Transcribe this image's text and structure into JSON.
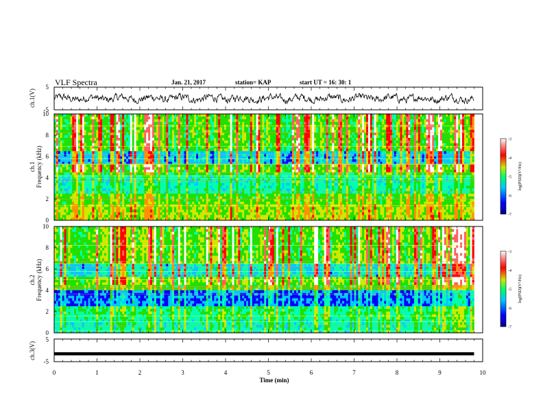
{
  "header": {
    "title": "VLF Spectra",
    "date": "Jan. 21, 2017",
    "station": "station= KAP",
    "start": "start  UT  =   16: 30: 1"
  },
  "colors": {
    "colormap": [
      "#00008b",
      "#0000ff",
      "#00c8ff",
      "#00ffb0",
      "#20e000",
      "#d0e800",
      "#ff9000",
      "#ff0000",
      "#ff6060",
      "#ffffff"
    ]
  },
  "chart_data": [
    {
      "type": "line",
      "name": "ch1-waveform",
      "ylabel": "ch.1(V)",
      "ylim": [
        -5,
        5
      ],
      "y_ticks": [
        "5",
        "-5"
      ],
      "xlim": [
        0,
        10
      ],
      "note_values": "noisy waveform roughly between -1.5 and 1.5 V"
    },
    {
      "type": "heatmap",
      "name": "ch1-spectrogram",
      "ylabel": "Frequency (kHz)",
      "channel_label": "ch.1",
      "ylim": [
        0,
        10
      ],
      "y_ticks": [
        "0",
        "2",
        "4",
        "6",
        "8",
        "10"
      ],
      "xlim": [
        0,
        10
      ],
      "data_end_min": 9.8,
      "colorbar": {
        "label": "log(PSD)(V²/Hz)",
        "range": [
          -7,
          -3
        ],
        "ticks": [
          "-3",
          "-4",
          "-5",
          "-6",
          "-7"
        ]
      }
    },
    {
      "type": "heatmap",
      "name": "ch2-spectrogram",
      "ylabel": "Frequency (kHz)",
      "channel_label": "ch.2",
      "ylim": [
        0,
        10
      ],
      "y_ticks": [
        "0",
        "2",
        "4",
        "6",
        "8",
        "10"
      ],
      "xlim": [
        0,
        10
      ],
      "data_end_min": 9.8,
      "colorbar": {
        "label": "log(PSD)(V²/Hz)",
        "range": [
          -7,
          -3
        ],
        "ticks": [
          "-3",
          "-4",
          "-5",
          "-6",
          "-7"
        ]
      }
    },
    {
      "type": "line",
      "name": "ch3-signal",
      "ylabel": "ch.3(V)",
      "ylim": [
        -5,
        5
      ],
      "y_ticks": [
        "5",
        "-5"
      ],
      "xlim": [
        0,
        10
      ],
      "constant_value": -1.5
    }
  ],
  "x_axis": {
    "label": "Time  (min)",
    "ticks": [
      "0",
      "1",
      "2",
      "3",
      "4",
      "5",
      "6",
      "7",
      "8",
      "9",
      "10"
    ]
  }
}
